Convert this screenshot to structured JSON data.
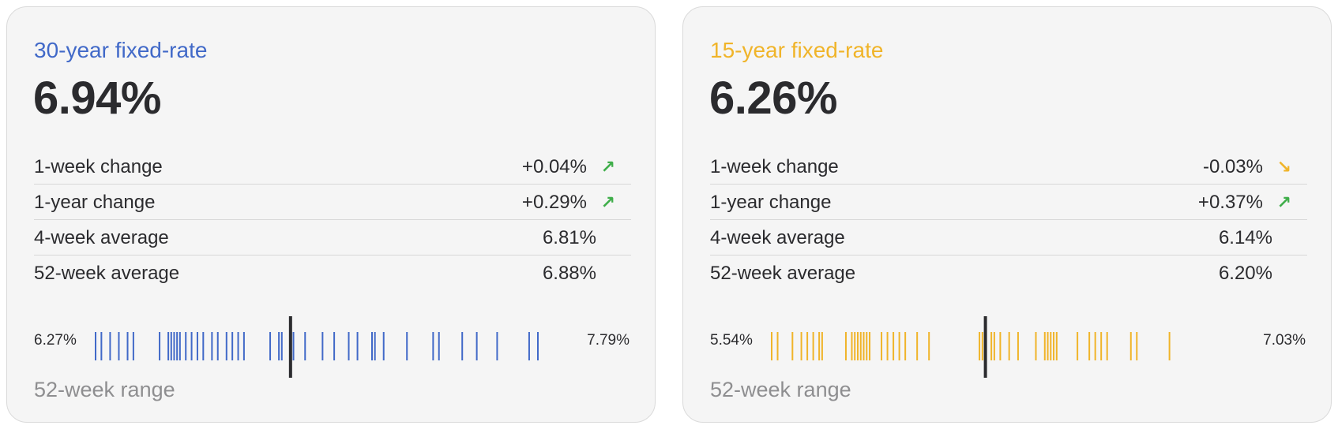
{
  "colors": {
    "blue": "#4169c8",
    "gold": "#f0b429",
    "up": "#3fae4a",
    "down": "#f0b429",
    "marker": "#2b2b2e"
  },
  "cards": [
    {
      "title": "30-year fixed-rate",
      "rate": "6.94%",
      "rows": [
        {
          "label": "1-week change",
          "value": "+0.04%",
          "arrow": "↗",
          "arrow_icon": "arrow-up-right-icon"
        },
        {
          "label": "1-year change",
          "value": "+0.29%",
          "arrow": "↗",
          "arrow_icon": "arrow-up-right-icon"
        },
        {
          "label": "4-week average",
          "value": "6.81%"
        },
        {
          "label": "52-week average",
          "value": "6.88%"
        }
      ],
      "range_min": "6.27%",
      "range_max": "7.79%",
      "range_caption": "52-week range",
      "range_lo": 6.27,
      "range_hi": 7.79,
      "current": 6.94,
      "weekly_rates": [
        6.27,
        6.29,
        6.32,
        6.35,
        6.38,
        6.4,
        6.49,
        6.52,
        6.53,
        6.54,
        6.55,
        6.56,
        6.58,
        6.6,
        6.62,
        6.64,
        6.67,
        6.69,
        6.72,
        6.74,
        6.76,
        6.78,
        6.87,
        6.9,
        6.91,
        6.95,
        6.99,
        7.05,
        7.09,
        7.14,
        7.17,
        7.22,
        7.23,
        7.26,
        7.34,
        7.43,
        7.45,
        7.53,
        7.58,
        7.65,
        7.76,
        7.79
      ]
    },
    {
      "title": "15-year fixed-rate",
      "rate": "6.26%",
      "rows": [
        {
          "label": "1-week change",
          "value": "-0.03%",
          "arrow": "↘",
          "arrow_icon": "arrow-down-right-icon"
        },
        {
          "label": "1-year change",
          "value": "+0.37%",
          "arrow": "↗",
          "arrow_icon": "arrow-up-right-icon"
        },
        {
          "label": "4-week average",
          "value": "6.14%"
        },
        {
          "label": "52-week average",
          "value": "6.20%"
        }
      ],
      "range_min": "5.54%",
      "range_max": "7.03%",
      "range_caption": "52-week range",
      "range_lo": 5.54,
      "range_hi": 7.03,
      "current": 6.26,
      "weekly_rates": [
        5.54,
        5.56,
        5.61,
        5.64,
        5.66,
        5.68,
        5.7,
        5.71,
        5.79,
        5.81,
        5.82,
        5.83,
        5.84,
        5.85,
        5.86,
        5.87,
        5.91,
        5.93,
        5.95,
        5.97,
        5.99,
        6.03,
        6.07,
        6.24,
        6.25,
        6.28,
        6.29,
        6.31,
        6.34,
        6.37,
        6.43,
        6.46,
        6.47,
        6.48,
        6.49,
        6.5,
        6.57,
        6.61,
        6.63,
        6.65,
        6.67,
        6.75,
        6.77,
        6.88
      ]
    }
  ]
}
